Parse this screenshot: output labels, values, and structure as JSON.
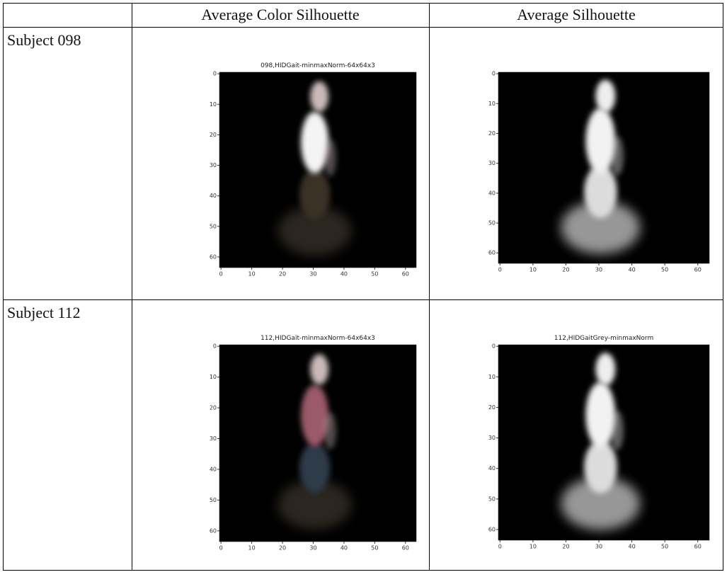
{
  "table": {
    "header": [
      "Average Color Silhouette",
      "Average Silhouette"
    ],
    "rows": [
      {
        "label": "Subject 098",
        "color_plot_title": "098,HIDGait-minmaxNorm-64x64x3"
      },
      {
        "label": "Subject 112",
        "color_plot_title": "112,HIDGait-minmaxNorm-64x64x3",
        "silhouette_plot_title": "112,HIDGaitGrey-minmaxNorm"
      }
    ],
    "plot_ticks": [
      0,
      10,
      20,
      30,
      40,
      50,
      60
    ]
  }
}
